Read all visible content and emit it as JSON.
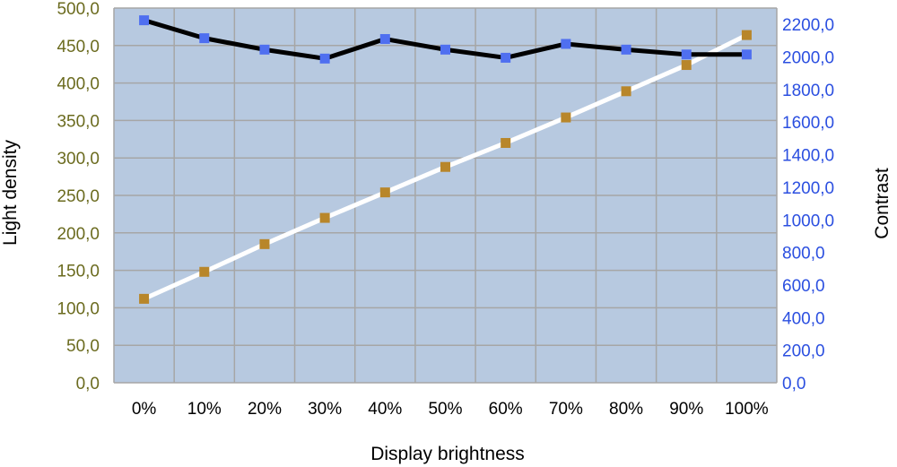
{
  "chart_data": {
    "type": "line",
    "xlabel": "Display brightness",
    "ylabel_left": "Light density",
    "ylabel_right": "Contrast",
    "categories": [
      "0%",
      "10%",
      "20%",
      "30%",
      "40%",
      "50%",
      "60%",
      "70%",
      "80%",
      "90%",
      "100%"
    ],
    "y_left": {
      "ylim": [
        0,
        500
      ],
      "ticks": [
        0,
        50,
        100,
        150,
        200,
        250,
        300,
        350,
        400,
        450,
        500
      ],
      "tick_labels": [
        "0,0",
        "50,0",
        "100,0",
        "150,0",
        "200,0",
        "250,0",
        "300,0",
        "350,0",
        "400,0",
        "450,0",
        "500,0"
      ]
    },
    "y_right": {
      "ylim": [
        0,
        2300
      ],
      "ticks": [
        0,
        200,
        400,
        600,
        800,
        1000,
        1200,
        1400,
        1600,
        1800,
        2000,
        2200
      ],
      "tick_labels": [
        "0,0",
        "200,0",
        "400,0",
        "600,0",
        "800,0",
        "1000,0",
        "1200,0",
        "1400,0",
        "1600,0",
        "1800,0",
        "2000,0",
        "2200,0"
      ]
    },
    "series": [
      {
        "axis": "left",
        "line_color": "#ffffff",
        "marker_color": "#b8862a",
        "values": [
          112,
          148,
          185,
          220,
          254,
          288,
          320,
          354,
          389,
          424,
          464
        ]
      },
      {
        "axis": "right",
        "line_color": "#000000",
        "marker_color": "#4f6ff0",
        "values": [
          2225,
          2115,
          2045,
          1990,
          2110,
          2045,
          1995,
          2080,
          2045,
          2015,
          2015
        ]
      }
    ],
    "grid": true,
    "plot_background": "#b7c9e0",
    "grid_color": "#a6a6a6",
    "right_tick_color": "#2b4fe0",
    "left_tick_color": "#6b6b1f"
  }
}
